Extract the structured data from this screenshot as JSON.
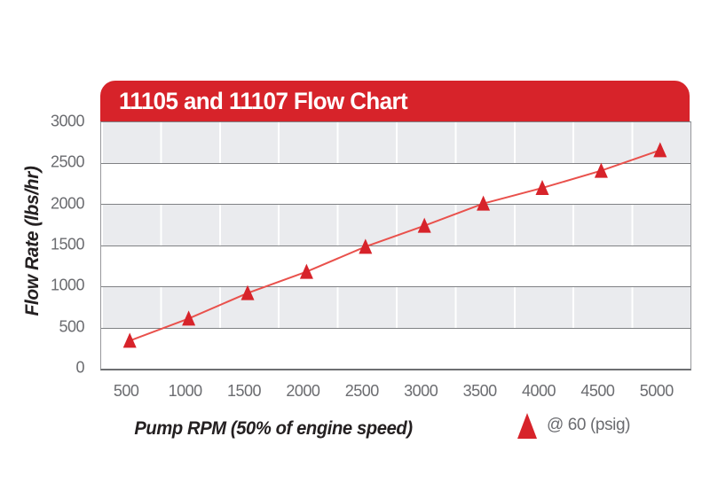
{
  "header": {
    "title": "11105 and 11107 Flow Chart"
  },
  "chart_data": {
    "type": "line",
    "title": "11105 and 11107 Flow Chart",
    "xlabel": "Pump RPM (50% of engine speed)",
    "ylabel": "Flow Rate (lbs/hr)",
    "x": [
      500,
      1000,
      1500,
      2000,
      2500,
      3000,
      3500,
      4000,
      4500,
      5000
    ],
    "series": [
      {
        "name": "@ 60 (psig)",
        "marker": "triangle-up",
        "values": [
          330,
          600,
          910,
          1170,
          1475,
          1730,
          2000,
          2190,
          2400,
          2650
        ]
      }
    ],
    "ylim": [
      0,
      3000
    ],
    "y_ticks": [
      3000,
      2500,
      2000,
      1500,
      1000,
      500,
      0
    ],
    "x_ticks": [
      500,
      1000,
      1500,
      2000,
      2500,
      3000,
      3500,
      4000,
      4500,
      5000
    ],
    "grid": {
      "horizontal": "major lines every 500",
      "vertical": "light lines at category boundaries",
      "alternating_bands": true
    },
    "legend_position": "bottom-right",
    "colors": {
      "banner_red": "#d7232a",
      "marker_red": "#d7232a",
      "line_red": "#e9514c",
      "band_gray": "#eaebee",
      "band_white": "#ffffff",
      "gridline_gray": "#7f8184",
      "tick_text_gray": "#6b6c70",
      "axis_title_dark": "#242021"
    }
  }
}
